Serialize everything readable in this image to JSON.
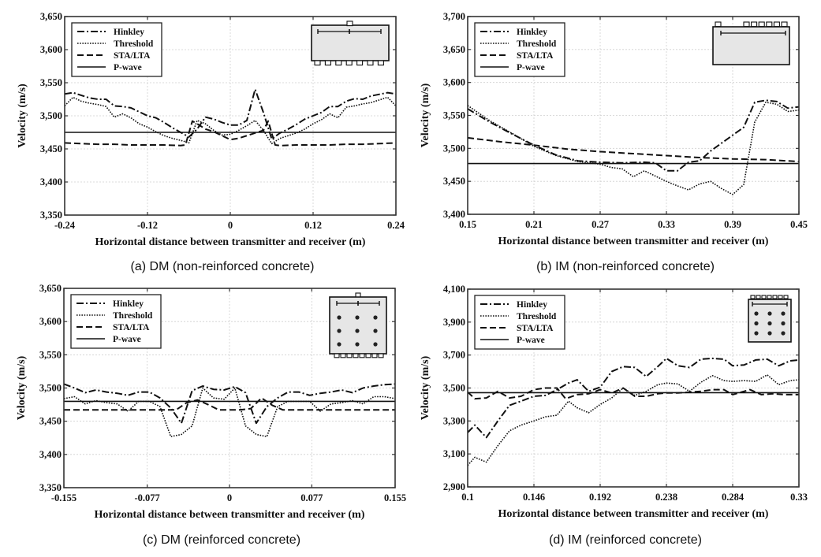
{
  "figure": {
    "line_color": "#111111",
    "inset_fill": "#e6e6e6"
  },
  "legend_labels": [
    "Hinkley",
    "Threshold",
    "STA/LTA",
    "P-wave"
  ],
  "chart_data": [
    {
      "id": "a",
      "type": "line",
      "caption": "(a)  DM  (non-reinforced  concrete)",
      "xlabel": "Horizontal distance between transmitter and receiver (m)",
      "ylabel": "Velocity (m/s)",
      "xlim": [
        -0.24,
        0.24
      ],
      "ylim": [
        3350,
        3650
      ],
      "xticks": [
        -0.24,
        -0.12,
        0,
        0.12,
        0.24
      ],
      "xtick_labels": [
        "-0.24",
        "-0.12",
        "0",
        "0.12",
        "0.24"
      ],
      "yticks": [
        3350,
        3400,
        3450,
        3500,
        3550,
        3600,
        3650
      ],
      "ytick_labels": [
        "3,350",
        "3,400",
        "3,450",
        "3,500",
        "3,550",
        "3,600",
        "3,650"
      ],
      "grid": true,
      "legend_position": "top-left",
      "inset": "dm-plain",
      "series": [
        {
          "name": "Hinkley",
          "style": "dashdot",
          "x": [
            -0.24,
            -0.228,
            -0.204,
            -0.192,
            -0.18,
            -0.168,
            -0.156,
            -0.144,
            -0.12,
            -0.108,
            -0.096,
            -0.084,
            -0.072,
            -0.06,
            -0.048,
            -0.036,
            -0.024,
            -0.012,
            0,
            0.012,
            0.024,
            0.036,
            0.048,
            0.06,
            0.072,
            0.084,
            0.096,
            0.108,
            0.12,
            0.132,
            0.144,
            0.156,
            0.168,
            0.18,
            0.192,
            0.204,
            0.228,
            0.24
          ],
          "y": [
            3533,
            3535,
            3527,
            3525,
            3525,
            3515,
            3514,
            3512,
            3500,
            3497,
            3490,
            3482,
            3475,
            3468,
            3480,
            3498,
            3495,
            3490,
            3486,
            3486,
            3493,
            3540,
            3505,
            3465,
            3474,
            3480,
            3487,
            3495,
            3500,
            3505,
            3514,
            3514,
            3522,
            3526,
            3525,
            3530,
            3535,
            3533
          ]
        },
        {
          "name": "Threshold",
          "style": "dotted",
          "x": [
            -0.24,
            -0.228,
            -0.216,
            -0.204,
            -0.192,
            -0.18,
            -0.168,
            -0.156,
            -0.144,
            -0.132,
            -0.12,
            -0.108,
            -0.096,
            -0.084,
            -0.072,
            -0.06,
            -0.048,
            -0.036,
            -0.024,
            -0.012,
            0,
            0.012,
            0.024,
            0.036,
            0.048,
            0.06,
            0.072,
            0.084,
            0.096,
            0.108,
            0.12,
            0.132,
            0.144,
            0.156,
            0.168,
            0.18,
            0.192,
            0.204,
            0.228,
            0.24
          ],
          "y": [
            3515,
            3528,
            3522,
            3519,
            3517,
            3514,
            3498,
            3503,
            3497,
            3488,
            3483,
            3476,
            3470,
            3466,
            3463,
            3459,
            3493,
            3488,
            3478,
            3471,
            3472,
            3478,
            3485,
            3493,
            3478,
            3458,
            3466,
            3470,
            3474,
            3480,
            3488,
            3494,
            3503,
            3497,
            3513,
            3515,
            3518,
            3520,
            3528,
            3515
          ]
        },
        {
          "name": "STA/LTA",
          "style": "dashed",
          "x": [
            -0.24,
            -0.216,
            -0.192,
            -0.168,
            -0.144,
            -0.12,
            -0.096,
            -0.072,
            -0.065,
            -0.055,
            -0.048,
            -0.036,
            -0.024,
            -0.012,
            0,
            0.012,
            0.024,
            0.036,
            0.048,
            0.055,
            0.065,
            0.072,
            0.096,
            0.12,
            0.144,
            0.168,
            0.192,
            0.216,
            0.24
          ],
          "y": [
            3459,
            3458,
            3457,
            3457,
            3456,
            3456,
            3456,
            3455,
            3456,
            3492,
            3488,
            3480,
            3476,
            3470,
            3464,
            3466,
            3470,
            3474,
            3478,
            3492,
            3456,
            3455,
            3456,
            3456,
            3456,
            3457,
            3457,
            3458,
            3459
          ]
        },
        {
          "name": "P-wave",
          "style": "solid",
          "x": [
            -0.24,
            0.24
          ],
          "y": [
            3475,
            3475
          ]
        }
      ]
    },
    {
      "id": "b",
      "type": "line",
      "caption": "(b)  IM  (non-reinforced  concrete)",
      "xlabel": "Horizontal distance between transmitter and receiver (m)",
      "ylabel": "Velocity (m/s)",
      "xlim": [
        0.15,
        0.45
      ],
      "ylim": [
        3400,
        3700
      ],
      "xticks": [
        0.15,
        0.21,
        0.27,
        0.33,
        0.39,
        0.45
      ],
      "xtick_labels": [
        "0.15",
        "0.21",
        "0.27",
        "0.33",
        "0.39",
        "0.45"
      ],
      "yticks": [
        3400,
        3450,
        3500,
        3550,
        3600,
        3650,
        3700
      ],
      "ytick_labels": [
        "3,400",
        "3,450",
        "3,500",
        "3,550",
        "3,600",
        "3,650",
        "3,700"
      ],
      "grid": true,
      "legend_position": "top-left",
      "inset": "im-plain",
      "series": [
        {
          "name": "Hinkley",
          "style": "dashdot",
          "x": [
            0.15,
            0.17,
            0.19,
            0.21,
            0.23,
            0.25,
            0.27,
            0.29,
            0.31,
            0.32,
            0.33,
            0.34,
            0.35,
            0.36,
            0.37,
            0.38,
            0.39,
            0.4,
            0.41,
            0.42,
            0.43,
            0.44,
            0.45
          ],
          "y": [
            3560,
            3540,
            3522,
            3505,
            3490,
            3481,
            3479,
            3478,
            3479,
            3478,
            3466,
            3466,
            3479,
            3481,
            3496,
            3508,
            3520,
            3532,
            3570,
            3573,
            3571,
            3561,
            3563
          ]
        },
        {
          "name": "Threshold",
          "style": "dotted",
          "x": [
            0.15,
            0.17,
            0.19,
            0.21,
            0.23,
            0.25,
            0.27,
            0.28,
            0.29,
            0.3,
            0.31,
            0.32,
            0.33,
            0.34,
            0.35,
            0.36,
            0.37,
            0.38,
            0.39,
            0.4,
            0.41,
            0.42,
            0.43,
            0.44,
            0.45
          ],
          "y": [
            3565,
            3542,
            3523,
            3503,
            3489,
            3480,
            3476,
            3471,
            3469,
            3457,
            3466,
            3458,
            3450,
            3443,
            3437,
            3446,
            3450,
            3439,
            3430,
            3445,
            3540,
            3570,
            3567,
            3556,
            3558
          ]
        },
        {
          "name": "STA/LTA",
          "style": "dashed",
          "x": [
            0.15,
            0.18,
            0.21,
            0.24,
            0.27,
            0.3,
            0.33,
            0.36,
            0.39,
            0.42,
            0.45
          ],
          "y": [
            3516,
            3510,
            3505,
            3499,
            3495,
            3492,
            3489,
            3486,
            3484,
            3483,
            3480
          ]
        },
        {
          "name": "P-wave",
          "style": "solid",
          "x": [
            0.15,
            0.45
          ],
          "y": [
            3477,
            3477
          ]
        }
      ]
    },
    {
      "id": "c",
      "type": "line",
      "caption": "(c)  DM  (reinforced  concrete)",
      "xlabel": "Horizontal distance between transmitter and receiver (m)",
      "ylabel": "Velocity (m/s)",
      "xlim": [
        -0.155,
        0.155
      ],
      "ylim": [
        3350,
        3650
      ],
      "xticks": [
        -0.155,
        -0.077,
        0,
        0.077,
        0.155
      ],
      "xtick_labels": [
        "-0.155",
        "-0.077",
        "0",
        "0.077",
        "0.155"
      ],
      "yticks": [
        3350,
        3400,
        3450,
        3500,
        3550,
        3600,
        3650
      ],
      "ytick_labels": [
        "3,350",
        "3,400",
        "3,450",
        "3,500",
        "3,550",
        "3,600",
        "3,650"
      ],
      "grid": true,
      "legend_position": "top-left",
      "inset": "dm-reinforced",
      "series": [
        {
          "name": "Hinkley",
          "style": "dashdot",
          "x": [
            -0.155,
            -0.145,
            -0.135,
            -0.125,
            -0.115,
            -0.105,
            -0.095,
            -0.085,
            -0.075,
            -0.065,
            -0.055,
            -0.045,
            -0.035,
            -0.025,
            -0.015,
            -0.005,
            0.005,
            0.015,
            0.025,
            0.035,
            0.045,
            0.055,
            0.065,
            0.075,
            0.085,
            0.095,
            0.105,
            0.115,
            0.125,
            0.135,
            0.145,
            0.155
          ],
          "y": [
            3506,
            3500,
            3493,
            3497,
            3494,
            3492,
            3489,
            3494,
            3494,
            3485,
            3470,
            3447,
            3496,
            3503,
            3498,
            3497,
            3502,
            3493,
            3447,
            3472,
            3485,
            3494,
            3494,
            3489,
            3492,
            3494,
            3497,
            3493,
            3500,
            3503,
            3505,
            3506
          ]
        },
        {
          "name": "Threshold",
          "style": "dotted",
          "x": [
            -0.155,
            -0.145,
            -0.135,
            -0.125,
            -0.115,
            -0.105,
            -0.095,
            -0.085,
            -0.075,
            -0.065,
            -0.055,
            -0.045,
            -0.035,
            -0.025,
            -0.015,
            -0.005,
            0.005,
            0.015,
            0.025,
            0.035,
            0.045,
            0.055,
            0.065,
            0.075,
            0.085,
            0.095,
            0.105,
            0.115,
            0.125,
            0.135,
            0.145,
            0.155
          ],
          "y": [
            3484,
            3487,
            3476,
            3481,
            3478,
            3476,
            3465,
            3480,
            3480,
            3472,
            3427,
            3430,
            3443,
            3500,
            3485,
            3483,
            3500,
            3443,
            3430,
            3427,
            3472,
            3480,
            3480,
            3480,
            3465,
            3476,
            3478,
            3481,
            3476,
            3487,
            3487,
            3484
          ]
        },
        {
          "name": "STA/LTA",
          "style": "dashed",
          "x": [
            -0.155,
            -0.05,
            -0.04,
            -0.03,
            -0.02,
            -0.01,
            0,
            0.01,
            0.02,
            0.03,
            0.04,
            0.05,
            0.155
          ],
          "y": [
            3467,
            3467,
            3478,
            3482,
            3475,
            3467,
            3467,
            3467,
            3469,
            3485,
            3474,
            3467,
            3467
          ]
        },
        {
          "name": "P-wave",
          "style": "solid",
          "x": [
            -0.155,
            0.155
          ],
          "y": [
            3480,
            3480
          ]
        }
      ]
    },
    {
      "id": "d",
      "type": "line",
      "caption": "(d)  IM  (reinforced  concrete)",
      "xlabel": "Horizontal distance between transmitter and receiver (m)",
      "ylabel": "Velocity (m/s)",
      "xlim": [
        0.1,
        0.33
      ],
      "ylim": [
        2900,
        4100
      ],
      "xticks": [
        0.1,
        0.146,
        0.192,
        0.238,
        0.284,
        0.33
      ],
      "xtick_labels": [
        "0.1",
        "0.146",
        "0.192",
        "0.238",
        "0.284",
        "0.33"
      ],
      "yticks": [
        2900,
        3100,
        3300,
        3500,
        3700,
        3900,
        4100
      ],
      "ytick_labels": [
        "2,900",
        "3,100",
        "3,300",
        "3,500",
        "3,700",
        "3,900",
        "4,100"
      ],
      "grid": true,
      "legend_position": "top-left",
      "inset": "im-reinforced",
      "series": [
        {
          "name": "Hinkley",
          "style": "dashdot",
          "x": [
            0.1,
            0.105,
            0.113,
            0.121,
            0.129,
            0.137,
            0.146,
            0.154,
            0.162,
            0.17,
            0.176,
            0.184,
            0.192,
            0.2,
            0.208,
            0.216,
            0.224,
            0.232,
            0.238,
            0.246,
            0.254,
            0.262,
            0.27,
            0.278,
            0.284,
            0.292,
            0.3,
            0.308,
            0.316,
            0.324,
            0.33
          ],
          "y": [
            3230,
            3275,
            3200,
            3300,
            3395,
            3420,
            3450,
            3455,
            3490,
            3530,
            3550,
            3480,
            3505,
            3600,
            3630,
            3625,
            3570,
            3630,
            3680,
            3635,
            3625,
            3675,
            3680,
            3675,
            3635,
            3640,
            3670,
            3675,
            3635,
            3665,
            3670
          ]
        },
        {
          "name": "Threshold",
          "style": "dotted",
          "x": [
            0.1,
            0.105,
            0.113,
            0.121,
            0.129,
            0.137,
            0.146,
            0.154,
            0.162,
            0.17,
            0.176,
            0.184,
            0.192,
            0.2,
            0.208,
            0.216,
            0.224,
            0.232,
            0.238,
            0.246,
            0.254,
            0.262,
            0.27,
            0.278,
            0.284,
            0.292,
            0.3,
            0.308,
            0.316,
            0.324,
            0.33
          ],
          "y": [
            3030,
            3080,
            3050,
            3150,
            3240,
            3275,
            3300,
            3325,
            3335,
            3420,
            3380,
            3350,
            3400,
            3440,
            3500,
            3455,
            3480,
            3520,
            3530,
            3525,
            3480,
            3535,
            3575,
            3545,
            3540,
            3545,
            3540,
            3580,
            3520,
            3545,
            3550
          ]
        },
        {
          "name": "STA/LTA",
          "style": "dashed",
          "x": [
            0.1,
            0.105,
            0.113,
            0.121,
            0.129,
            0.137,
            0.146,
            0.154,
            0.162,
            0.168,
            0.176,
            0.184,
            0.192,
            0.2,
            0.208,
            0.216,
            0.224,
            0.232,
            0.238,
            0.246,
            0.254,
            0.262,
            0.27,
            0.278,
            0.284,
            0.29,
            0.296,
            0.304,
            0.312,
            0.32,
            0.33
          ],
          "y": [
            3475,
            3435,
            3440,
            3480,
            3440,
            3450,
            3490,
            3500,
            3500,
            3435,
            3460,
            3465,
            3490,
            3470,
            3500,
            3450,
            3450,
            3465,
            3470,
            3470,
            3475,
            3480,
            3490,
            3490,
            3460,
            3475,
            3490,
            3460,
            3465,
            3460,
            3460
          ]
        },
        {
          "name": "P-wave",
          "style": "solid",
          "x": [
            0.1,
            0.33
          ],
          "y": [
            3472,
            3472
          ]
        }
      ]
    }
  ]
}
